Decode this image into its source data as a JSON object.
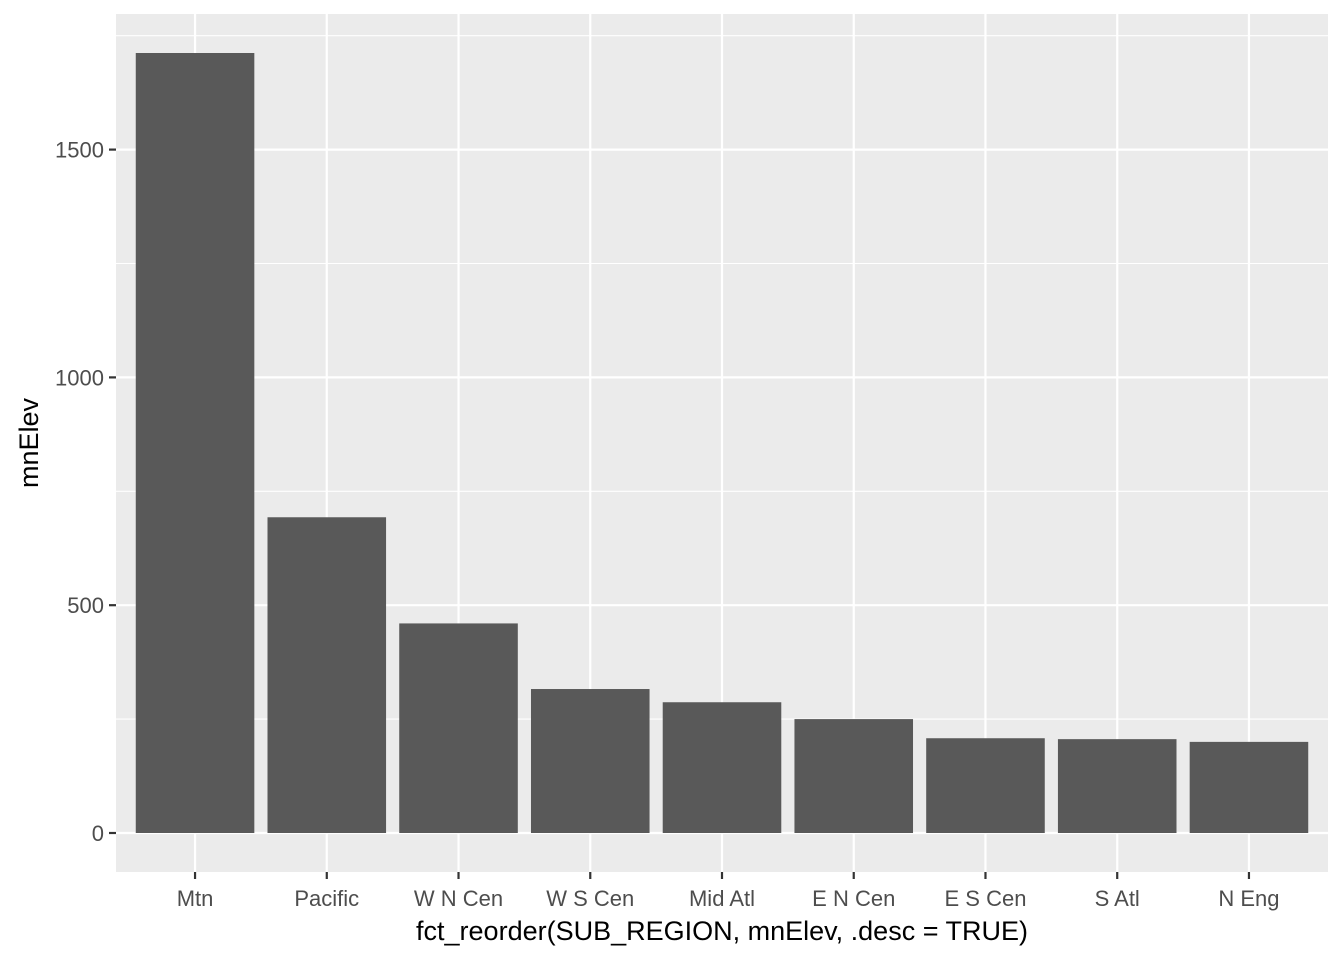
{
  "chart_data": {
    "type": "bar",
    "title": "",
    "xlabel": "fct_reorder(SUB_REGION, mnElev, .desc = TRUE)",
    "ylabel": "mnElev",
    "categories": [
      "Mtn",
      "Pacific",
      "W N Cen",
      "W S Cen",
      "Mid Atl",
      "E N Cen",
      "E S Cen",
      "S Atl",
      "N Eng"
    ],
    "values": [
      1712,
      693,
      460,
      316,
      287,
      250,
      208,
      206,
      200
    ],
    "ylim": [
      -85.6,
      1797.6
    ],
    "yticks": [
      0,
      500,
      1000,
      1500
    ],
    "ytick_labels": [
      "0",
      "500",
      "1000",
      "1500"
    ],
    "grid": true,
    "colors": {
      "bar": "#595959",
      "panel": "#EBEBEB",
      "grid": "#FFFFFF",
      "text": "#4D4D4D"
    }
  }
}
